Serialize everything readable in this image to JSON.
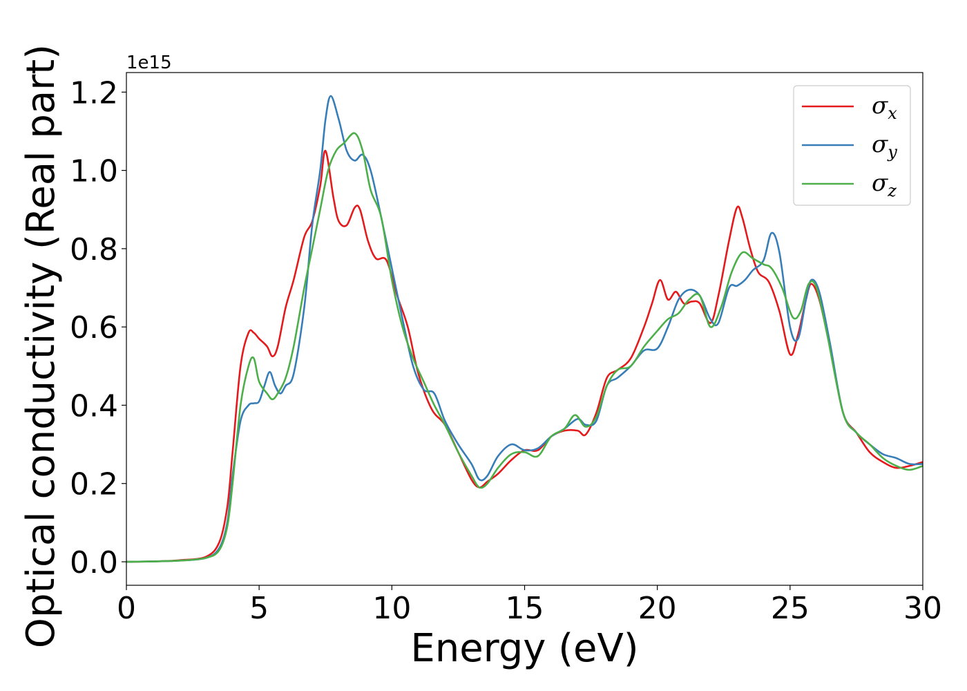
{
  "chart_data": {
    "type": "line",
    "xlabel": "Energy (eV)",
    "ylabel": "Optical conductivity (Real part)",
    "y_offset_label": "1e15",
    "xlim": [
      0,
      30
    ],
    "ylim": [
      -0.06,
      1.25
    ],
    "xticks": [
      0,
      5,
      10,
      15,
      20,
      25,
      30
    ],
    "yticks": [
      0.0,
      0.2,
      0.4,
      0.6,
      0.8,
      1.0,
      1.2
    ],
    "grid": false,
    "legend_position": "top-right",
    "series": [
      {
        "name": "σx",
        "symbol": "σ",
        "subscript": "x",
        "color": "#e41a1c",
        "x": [
          0,
          1,
          2,
          3,
          3.5,
          3.8,
          4.0,
          4.3,
          4.6,
          4.8,
          5.0,
          5.3,
          5.5,
          5.7,
          6.0,
          6.3,
          6.7,
          7.0,
          7.3,
          7.5,
          7.8,
          8.0,
          8.3,
          8.6,
          8.8,
          9.1,
          9.4,
          9.8,
          10.2,
          10.6,
          11.0,
          11.5,
          12.0,
          12.5,
          13.0,
          13.3,
          13.6,
          14.0,
          14.5,
          15.0,
          15.5,
          16.0,
          16.5,
          17.0,
          17.3,
          17.7,
          18.1,
          18.5,
          19.0,
          19.5,
          19.8,
          20.1,
          20.4,
          20.7,
          21.0,
          21.3,
          21.6,
          22.0,
          22.3,
          22.7,
          23.0,
          23.2,
          23.5,
          23.8,
          24.2,
          24.6,
          25.0,
          25.3,
          25.6,
          25.8,
          26.1,
          26.5,
          27.0,
          27.5,
          28.0,
          28.5,
          29.0,
          29.5,
          30.0
        ],
        "y": [
          0.0,
          0.001,
          0.004,
          0.013,
          0.05,
          0.14,
          0.28,
          0.5,
          0.585,
          0.585,
          0.57,
          0.55,
          0.525,
          0.55,
          0.65,
          0.72,
          0.83,
          0.87,
          0.96,
          1.05,
          0.93,
          0.87,
          0.86,
          0.905,
          0.9,
          0.82,
          0.775,
          0.77,
          0.68,
          0.6,
          0.48,
          0.39,
          0.35,
          0.28,
          0.21,
          0.19,
          0.205,
          0.225,
          0.26,
          0.285,
          0.285,
          0.32,
          0.335,
          0.335,
          0.325,
          0.38,
          0.47,
          0.49,
          0.52,
          0.6,
          0.66,
          0.72,
          0.67,
          0.69,
          0.66,
          0.665,
          0.66,
          0.61,
          0.68,
          0.82,
          0.905,
          0.88,
          0.8,
          0.74,
          0.715,
          0.64,
          0.53,
          0.58,
          0.67,
          0.71,
          0.67,
          0.55,
          0.38,
          0.33,
          0.28,
          0.255,
          0.24,
          0.245,
          0.255
        ]
      },
      {
        "name": "σy",
        "symbol": "σ",
        "subscript": "y",
        "color": "#377eb8",
        "x": [
          0,
          1,
          2,
          3,
          3.5,
          3.8,
          4.0,
          4.3,
          4.6,
          4.8,
          5.0,
          5.2,
          5.4,
          5.6,
          5.8,
          6.0,
          6.3,
          6.7,
          7.0,
          7.3,
          7.5,
          7.7,
          8.0,
          8.3,
          8.6,
          8.9,
          9.2,
          9.6,
          10.0,
          10.4,
          10.8,
          11.2,
          11.6,
          12.0,
          12.5,
          13.0,
          13.3,
          13.6,
          14.0,
          14.5,
          15.0,
          15.5,
          16.0,
          16.5,
          17.0,
          17.3,
          17.7,
          18.1,
          18.5,
          19.0,
          19.5,
          20.0,
          20.4,
          20.8,
          21.2,
          21.6,
          22.0,
          22.3,
          22.7,
          23.0,
          23.3,
          23.6,
          24.0,
          24.3,
          24.6,
          25.0,
          25.3,
          25.6,
          25.8,
          26.1,
          26.5,
          27.0,
          27.5,
          28.0,
          28.5,
          29.0,
          29.5,
          30.0
        ],
        "y": [
          0.0,
          0.001,
          0.003,
          0.01,
          0.035,
          0.1,
          0.22,
          0.36,
          0.4,
          0.405,
          0.41,
          0.45,
          0.485,
          0.45,
          0.43,
          0.45,
          0.48,
          0.65,
          0.86,
          1.0,
          1.13,
          1.19,
          1.13,
          1.05,
          1.025,
          1.04,
          1.0,
          0.88,
          0.75,
          0.62,
          0.5,
          0.44,
          0.43,
          0.36,
          0.3,
          0.25,
          0.21,
          0.22,
          0.27,
          0.3,
          0.285,
          0.29,
          0.32,
          0.34,
          0.365,
          0.35,
          0.36,
          0.45,
          0.47,
          0.5,
          0.54,
          0.545,
          0.6,
          0.67,
          0.695,
          0.68,
          0.62,
          0.61,
          0.7,
          0.705,
          0.72,
          0.745,
          0.77,
          0.84,
          0.79,
          0.6,
          0.57,
          0.67,
          0.72,
          0.69,
          0.56,
          0.38,
          0.33,
          0.3,
          0.275,
          0.265,
          0.25,
          0.25
        ]
      },
      {
        "name": "σz",
        "symbol": "σ",
        "subscript": "z",
        "color": "#4daf4a",
        "x": [
          0,
          1,
          2,
          3,
          3.5,
          3.8,
          4.0,
          4.3,
          4.6,
          4.8,
          5.0,
          5.3,
          5.5,
          5.7,
          6.0,
          6.3,
          6.7,
          7.0,
          7.3,
          7.6,
          7.9,
          8.2,
          8.6,
          8.9,
          9.2,
          9.6,
          10.0,
          10.4,
          10.8,
          11.2,
          11.6,
          12.0,
          12.5,
          13.0,
          13.3,
          13.6,
          14.0,
          14.5,
          15.0,
          15.5,
          16.0,
          16.5,
          16.9,
          17.3,
          17.7,
          18.1,
          18.5,
          19.0,
          19.5,
          20.0,
          20.4,
          20.8,
          21.2,
          21.6,
          22.0,
          22.4,
          22.8,
          23.2,
          23.6,
          24.0,
          24.3,
          24.7,
          25.1,
          25.4,
          25.7,
          26.0,
          26.4,
          27.0,
          27.5,
          28.0,
          28.5,
          29.0,
          29.5,
          30.0
        ],
        "y": [
          0.0,
          0.001,
          0.003,
          0.01,
          0.03,
          0.09,
          0.2,
          0.4,
          0.5,
          0.52,
          0.46,
          0.43,
          0.415,
          0.43,
          0.47,
          0.55,
          0.7,
          0.8,
          0.9,
          1.0,
          1.05,
          1.07,
          1.095,
          1.05,
          0.95,
          0.88,
          0.72,
          0.6,
          0.52,
          0.46,
          0.4,
          0.35,
          0.28,
          0.22,
          0.19,
          0.2,
          0.24,
          0.275,
          0.28,
          0.27,
          0.32,
          0.34,
          0.375,
          0.345,
          0.37,
          0.45,
          0.49,
          0.5,
          0.55,
          0.59,
          0.62,
          0.635,
          0.67,
          0.68,
          0.6,
          0.65,
          0.74,
          0.79,
          0.775,
          0.76,
          0.75,
          0.7,
          0.625,
          0.64,
          0.71,
          0.7,
          0.58,
          0.38,
          0.33,
          0.3,
          0.265,
          0.245,
          0.235,
          0.245
        ]
      }
    ]
  }
}
